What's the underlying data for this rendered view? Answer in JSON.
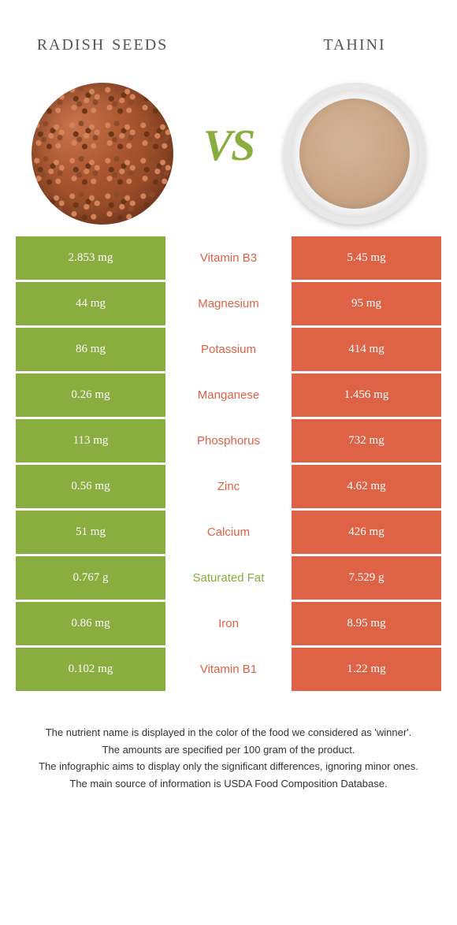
{
  "colors": {
    "left": "#8aad3f",
    "right": "#de6246",
    "vs": "#8aad3f",
    "title": "#555555",
    "footnote": "#333333"
  },
  "header": {
    "left_title": "Radish seeds",
    "right_title": "Tahini",
    "vs_label": "VS"
  },
  "rows": [
    {
      "left": "2.853 mg",
      "label": "Vitamin B3",
      "right": "5.45 mg",
      "winner": "right"
    },
    {
      "left": "44 mg",
      "label": "Magnesium",
      "right": "95 mg",
      "winner": "right"
    },
    {
      "left": "86 mg",
      "label": "Potassium",
      "right": "414 mg",
      "winner": "right"
    },
    {
      "left": "0.26 mg",
      "label": "Manganese",
      "right": "1.456 mg",
      "winner": "right"
    },
    {
      "left": "113 mg",
      "label": "Phosphorus",
      "right": "732 mg",
      "winner": "right"
    },
    {
      "left": "0.56 mg",
      "label": "Zinc",
      "right": "4.62 mg",
      "winner": "right"
    },
    {
      "left": "51 mg",
      "label": "Calcium",
      "right": "426 mg",
      "winner": "right"
    },
    {
      "left": "0.767 g",
      "label": "Saturated Fat",
      "right": "7.529 g",
      "winner": "left"
    },
    {
      "left": "0.86 mg",
      "label": "Iron",
      "right": "8.95 mg",
      "winner": "right"
    },
    {
      "left": "0.102 mg",
      "label": "Vitamin B1",
      "right": "1.22 mg",
      "winner": "right"
    }
  ],
  "footnotes": [
    "The nutrient name is displayed in the color of the food we considered as 'winner'.",
    "The amounts are specified per 100 gram of the product.",
    "The infographic aims to display only the significant differences, ignoring minor ones.",
    "The main source of information is USDA Food Composition Database."
  ]
}
